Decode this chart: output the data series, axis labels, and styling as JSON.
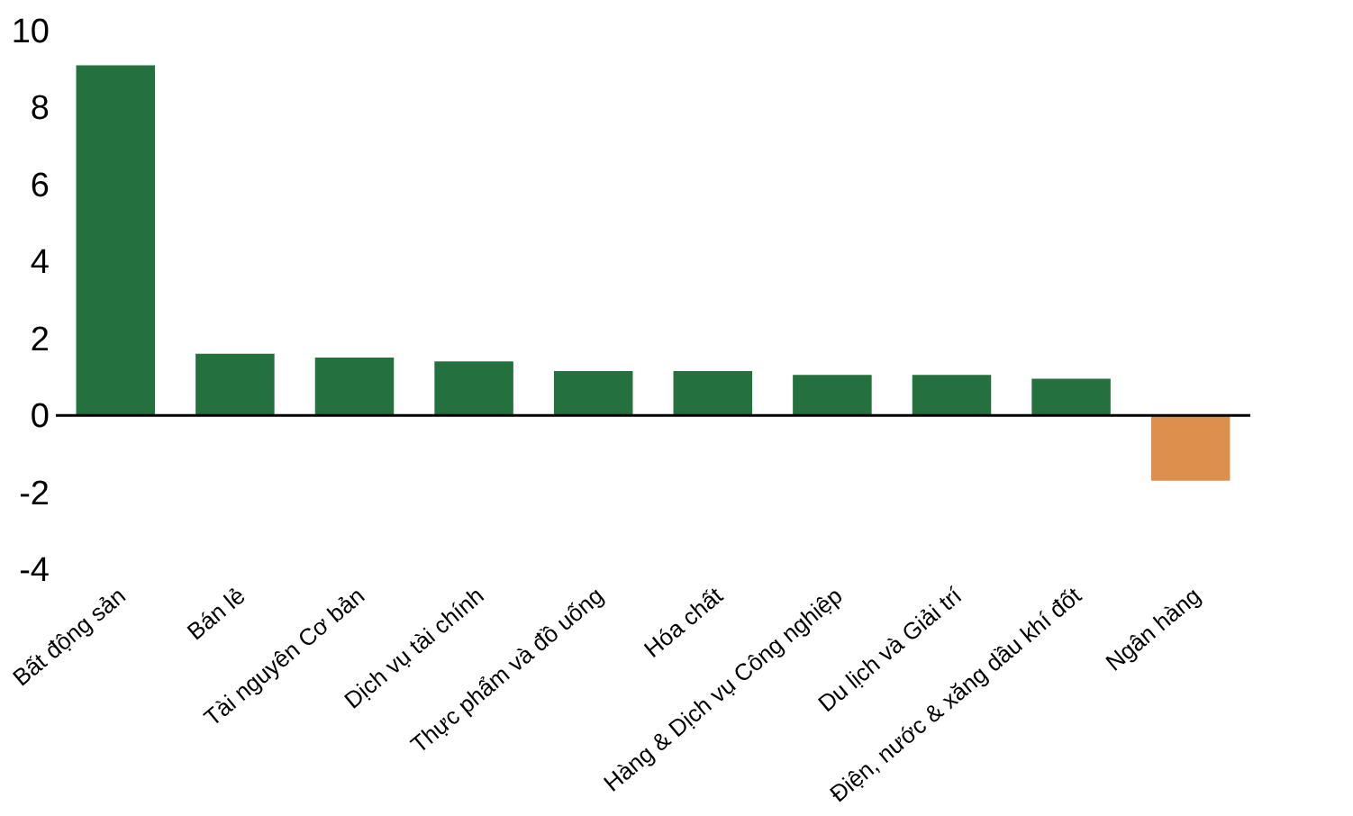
{
  "chart_data": {
    "type": "bar",
    "categories": [
      "Bất động sản",
      "Bán lẻ",
      "Tài nguyên Cơ bản",
      "Dịch vụ tài chính",
      "Thực phẩm và đồ uống",
      "Hóa chất",
      "Hàng & Dịch vụ Công nghiệp",
      "Du lịch và Giải trí",
      "Điện, nước & xăng dầu khí đốt",
      "Ngân hàng"
    ],
    "values": [
      9.1,
      1.6,
      1.5,
      1.4,
      1.15,
      1.15,
      1.05,
      1.05,
      0.95,
      -1.7
    ],
    "colors": [
      "#24703e",
      "#24703e",
      "#24703e",
      "#24703e",
      "#24703e",
      "#24703e",
      "#24703e",
      "#24703e",
      "#24703e",
      "#dd8f4e"
    ],
    "ylim": [
      -4,
      10
    ],
    "yticks": [
      -4,
      -2,
      0,
      2,
      4,
      6,
      8,
      10
    ],
    "grid": false,
    "ref_lines": [
      {
        "axis": "y",
        "value": 0,
        "color": "#000000",
        "line_style": "solid"
      }
    ]
  }
}
